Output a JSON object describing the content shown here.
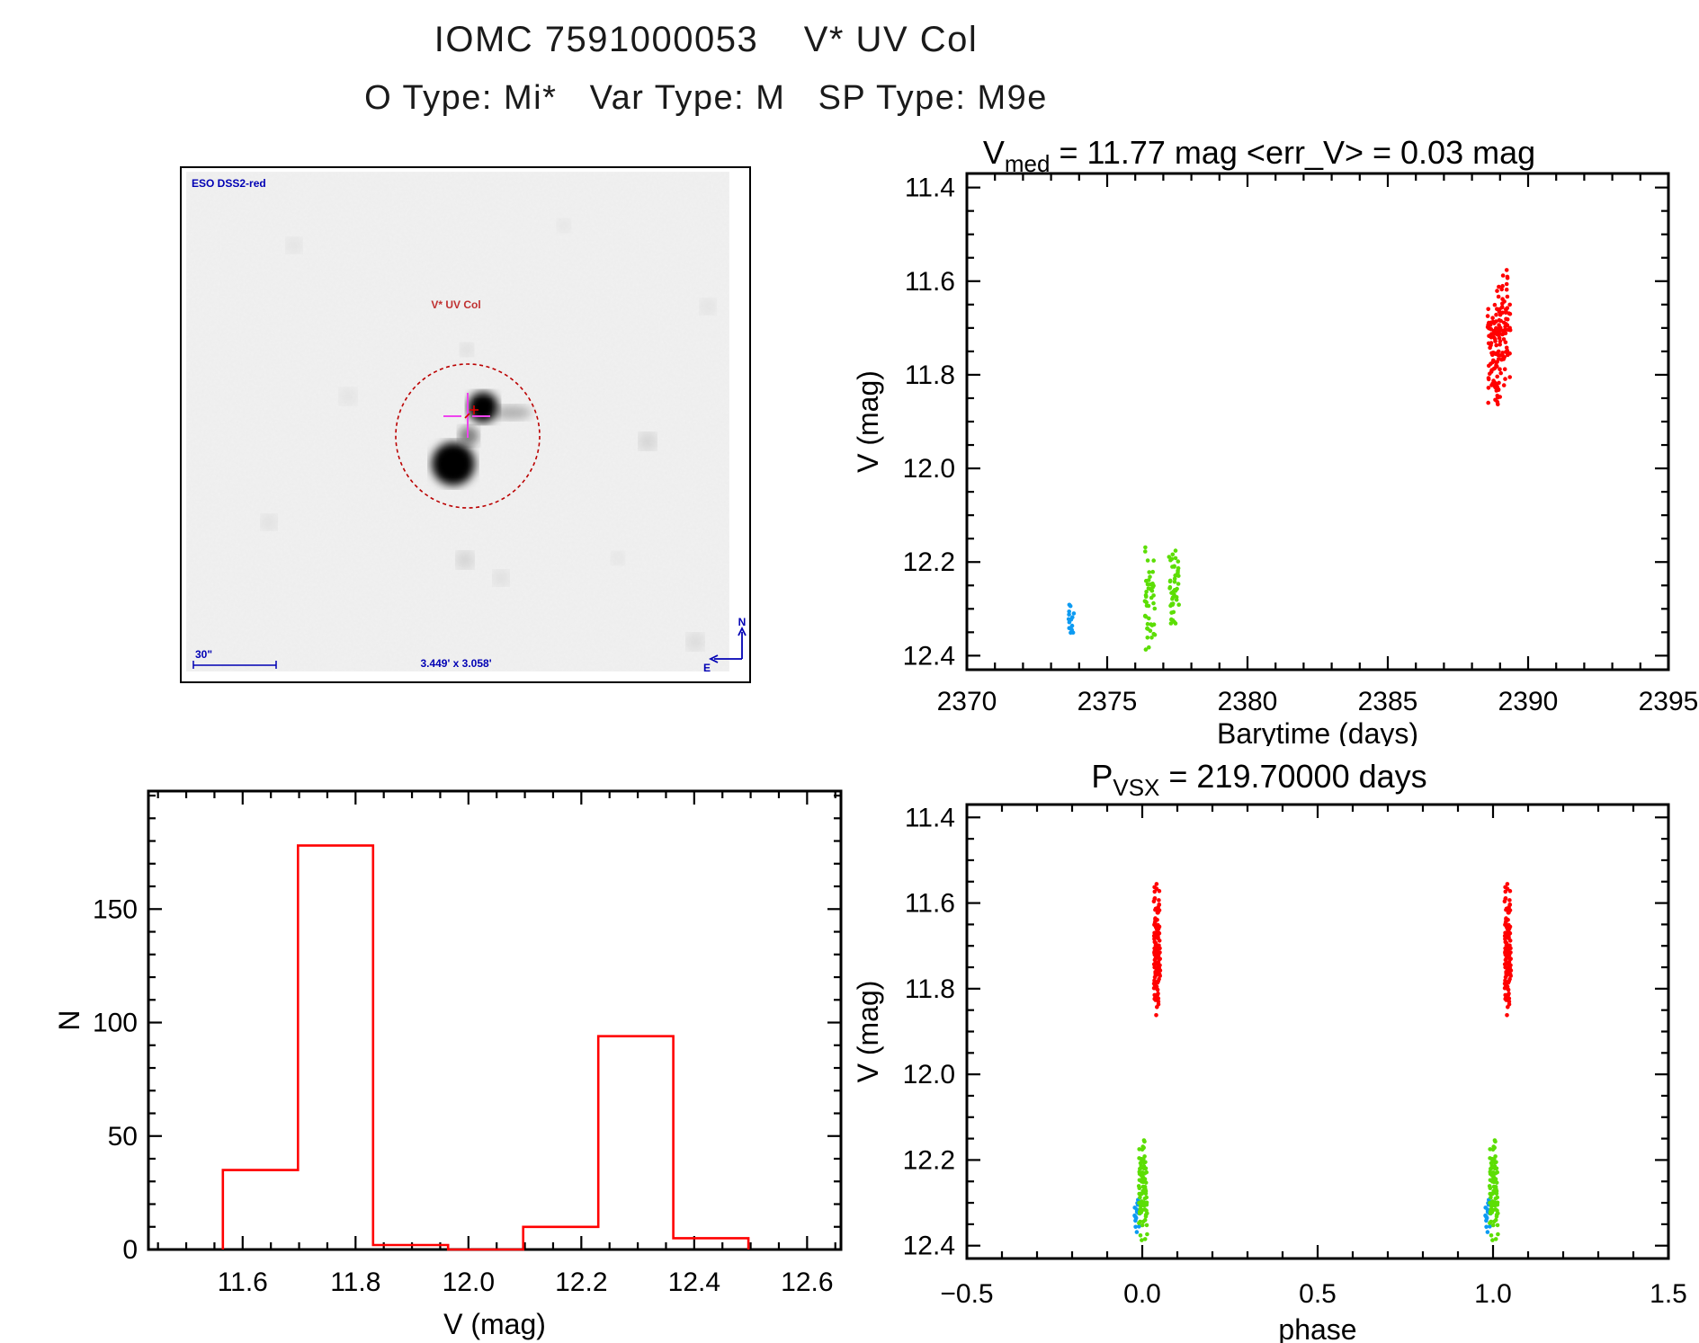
{
  "header": {
    "title": "IOMC 7591000053    V* UV Col",
    "subtitle": "O Type: Mi*   Var Type: M   SP Type: M9e"
  },
  "finder": {
    "survey_label": "ESO DSS2-red",
    "target_label": "V* UV Col",
    "scale_bar_label": "30\"",
    "fov_label": "3.449' x 3.058'",
    "compass_north": "N",
    "compass_east": "E",
    "annotation_color": "#0000B4",
    "marker_color": "#BB0000",
    "crosshair_color": "#EE44EE"
  },
  "colors": {
    "red": "#FF0000",
    "green": "#5CDE05",
    "blue": "#0D9BF2",
    "hist_line": "#FF0000",
    "axis": "#000000"
  },
  "chart_data": [
    {
      "id": "lightcurve",
      "type": "scatter",
      "title": {
        "base": "V",
        "sub": "med",
        "rest": " = 11.77 mag <err_V> = 0.03 mag"
      },
      "xlabel": "Barytime (days)",
      "ylabel": "V (mag)",
      "xlim": [
        2370,
        2395
      ],
      "ylim_display": [
        11.37,
        12.43
      ],
      "y_inverted_magnitude_axis": true,
      "xticks": [
        2370,
        2375,
        2380,
        2385,
        2390,
        2395
      ],
      "x_tick_labels": [
        "2370",
        "2375",
        "2380",
        "2385",
        "2390",
        "2395"
      ],
      "x_minor_step": 1,
      "yticks": [
        11.4,
        11.6,
        11.8,
        12.0,
        12.2,
        12.4
      ],
      "y_tick_labels": [
        "11.4",
        "11.6",
        "11.8",
        "12.0",
        "12.2",
        "12.4"
      ],
      "y_minor_step": 0.05,
      "clusters": [
        {
          "name": "epoch1-blue",
          "color": "#0D9BF2",
          "x_center": 2373.72,
          "x_spread": 0.1,
          "v_center": 12.325,
          "v_sd": 0.028,
          "v_min": 12.285,
          "v_max": 12.39,
          "n": 15,
          "seed": 101
        },
        {
          "name": "epoch2-green-a",
          "color": "#5CDE05",
          "x_center": 2376.52,
          "x_spread": 0.18,
          "v_center": 12.27,
          "v_sd": 0.055,
          "v_min": 12.16,
          "v_max": 12.405,
          "n": 46,
          "seed": 202
        },
        {
          "name": "epoch2-green-b",
          "color": "#5CDE05",
          "x_center": 2377.38,
          "x_spread": 0.18,
          "v_center": 12.245,
          "v_sd": 0.045,
          "v_min": 12.15,
          "v_max": 12.335,
          "n": 46,
          "seed": 303
        },
        {
          "name": "epoch3-red-a",
          "color": "#FF0000",
          "x_center": 2388.75,
          "x_spread": 0.22,
          "v_center": 11.755,
          "v_sd": 0.065,
          "v_min": 11.58,
          "v_max": 11.87,
          "n": 78,
          "seed": 404
        },
        {
          "name": "epoch3-red-b",
          "color": "#FF0000",
          "x_center": 2389.15,
          "x_spread": 0.22,
          "v_center": 11.705,
          "v_sd": 0.07,
          "v_min": 11.555,
          "v_max": 11.86,
          "n": 78,
          "seed": 505
        }
      ]
    },
    {
      "id": "histogram",
      "type": "histogram",
      "xlabel": "V (mag)",
      "ylabel": "N",
      "bin_edges": [
        11.565,
        11.698,
        11.831,
        11.964,
        12.097,
        12.23,
        12.363,
        12.496
      ],
      "counts": [
        35,
        178,
        2,
        0,
        10,
        94,
        5
      ],
      "xlim": [
        11.433,
        12.66
      ],
      "ylim": [
        0,
        202
      ],
      "xticks": [
        11.6,
        11.8,
        12.0,
        12.2,
        12.4,
        12.6
      ],
      "x_tick_labels": [
        "11.6",
        "11.8",
        "12.0",
        "12.2",
        "12.4",
        "12.6"
      ],
      "x_minor_step": 0.05,
      "yticks": [
        0,
        50,
        100,
        150
      ],
      "y_tick_labels": [
        "0",
        "50",
        "100",
        "150"
      ],
      "y_minor_step": 10,
      "color": "#FF0000"
    },
    {
      "id": "phase",
      "type": "scatter",
      "title": {
        "base": "P",
        "sub": "VSX",
        "rest": " = 219.70000 days"
      },
      "xlabel": "phase",
      "ylabel": "V (mag)",
      "xlim": [
        -0.5,
        1.5
      ],
      "ylim_display": [
        11.37,
        12.43
      ],
      "y_inverted_magnitude_axis": true,
      "xticks": [
        -0.5,
        0.0,
        0.5,
        1.0,
        1.5
      ],
      "x_tick_labels": [
        "−0.5",
        "0.0",
        "0.5",
        "1.0",
        "1.5"
      ],
      "x_minor_step": 0.1,
      "yticks": [
        11.4,
        11.6,
        11.8,
        12.0,
        12.2,
        12.4
      ],
      "y_tick_labels": [
        "11.4",
        "11.6",
        "11.8",
        "12.0",
        "12.2",
        "12.4"
      ],
      "y_minor_step": 0.05,
      "repeat_offset": 1.0,
      "clusters": [
        {
          "name": "phase-blue",
          "color": "#0D9BF2",
          "x_center": -0.015,
          "x_spread": 0.008,
          "v_center": 12.325,
          "v_sd": 0.028,
          "v_min": 12.285,
          "v_max": 12.39,
          "n": 16,
          "seed": 606
        },
        {
          "name": "phase-green",
          "color": "#5CDE05",
          "x_center": 0.002,
          "x_spread": 0.012,
          "v_center": 12.26,
          "v_sd": 0.06,
          "v_min": 12.15,
          "v_max": 12.405,
          "n": 92,
          "seed": 707
        },
        {
          "name": "phase-red",
          "color": "#FF0000",
          "x_center": 0.042,
          "x_spread": 0.009,
          "v_center": 11.72,
          "v_sd": 0.075,
          "v_min": 11.555,
          "v_max": 11.87,
          "n": 130,
          "seed": 808
        }
      ]
    }
  ]
}
